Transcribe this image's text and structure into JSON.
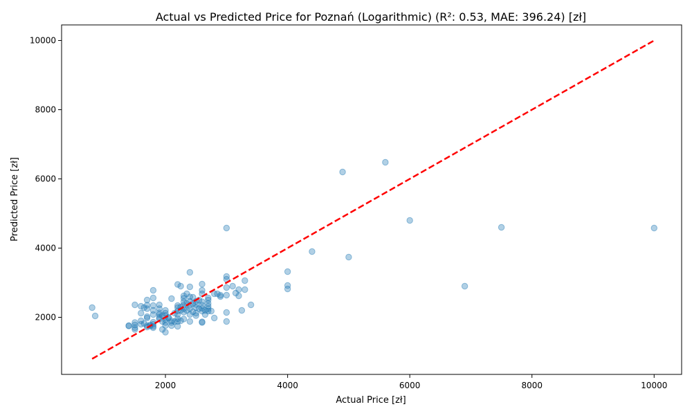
{
  "chart_data": {
    "type": "scatter",
    "title": "Actual vs Predicted Price for Poznań (Logarithmic) (R²: 0.53, MAE: 396.24) [zł]",
    "xlabel": "Actual Price [zł]",
    "ylabel": "Predicted Price [zł]",
    "xlim": [
      300,
      10450
    ],
    "ylim": [
      350,
      10450
    ],
    "xticks": [
      2000,
      4000,
      6000,
      8000,
      10000
    ],
    "yticks": [
      2000,
      4000,
      6000,
      8000,
      10000
    ],
    "xtick_labels": [
      "2000",
      "4000",
      "6000",
      "8000",
      "10000"
    ],
    "ytick_labels": [
      "2000",
      "4000",
      "6000",
      "8000",
      "10000"
    ],
    "grid": false,
    "colors": {
      "points": "#1f77b4",
      "reference_line": "#ff0000"
    },
    "reference_line": {
      "style": "dashed",
      "x": [
        800,
        10000
      ],
      "y": [
        800,
        10000
      ]
    },
    "points": [
      {
        "x": 800,
        "y": 2280
      },
      {
        "x": 850,
        "y": 2040
      },
      {
        "x": 1400,
        "y": 1750
      },
      {
        "x": 1400,
        "y": 1760
      },
      {
        "x": 1500,
        "y": 1650
      },
      {
        "x": 1500,
        "y": 1700
      },
      {
        "x": 1500,
        "y": 1780
      },
      {
        "x": 1500,
        "y": 1850
      },
      {
        "x": 1500,
        "y": 2360
      },
      {
        "x": 1600,
        "y": 1800
      },
      {
        "x": 1600,
        "y": 1900
      },
      {
        "x": 1600,
        "y": 2120
      },
      {
        "x": 1600,
        "y": 2320
      },
      {
        "x": 1650,
        "y": 1820
      },
      {
        "x": 1650,
        "y": 2280
      },
      {
        "x": 1700,
        "y": 1720
      },
      {
        "x": 1700,
        "y": 1760
      },
      {
        "x": 1700,
        "y": 1980
      },
      {
        "x": 1700,
        "y": 2020
      },
      {
        "x": 1700,
        "y": 2250
      },
      {
        "x": 1700,
        "y": 2350
      },
      {
        "x": 1700,
        "y": 2500
      },
      {
        "x": 1750,
        "y": 1780
      },
      {
        "x": 1750,
        "y": 1750
      },
      {
        "x": 1800,
        "y": 1700
      },
      {
        "x": 1800,
        "y": 1740
      },
      {
        "x": 1800,
        "y": 1800
      },
      {
        "x": 1800,
        "y": 1860
      },
      {
        "x": 1800,
        "y": 2080
      },
      {
        "x": 1800,
        "y": 2200
      },
      {
        "x": 1800,
        "y": 2340
      },
      {
        "x": 1800,
        "y": 2560
      },
      {
        "x": 1800,
        "y": 2780
      },
      {
        "x": 1900,
        "y": 1950
      },
      {
        "x": 1900,
        "y": 2000
      },
      {
        "x": 1900,
        "y": 2080
      },
      {
        "x": 1900,
        "y": 2130
      },
      {
        "x": 1900,
        "y": 2250
      },
      {
        "x": 1900,
        "y": 2360
      },
      {
        "x": 1950,
        "y": 1650
      },
      {
        "x": 1950,
        "y": 1880
      },
      {
        "x": 1950,
        "y": 2050
      },
      {
        "x": 2000,
        "y": 1570
      },
      {
        "x": 2000,
        "y": 1760
      },
      {
        "x": 2000,
        "y": 1850
      },
      {
        "x": 2000,
        "y": 1930
      },
      {
        "x": 2000,
        "y": 2050
      },
      {
        "x": 2000,
        "y": 2120
      },
      {
        "x": 2000,
        "y": 2200
      },
      {
        "x": 2050,
        "y": 1980
      },
      {
        "x": 2050,
        "y": 2000
      },
      {
        "x": 2100,
        "y": 1760
      },
      {
        "x": 2100,
        "y": 1850
      },
      {
        "x": 2100,
        "y": 1900
      },
      {
        "x": 2100,
        "y": 2540
      },
      {
        "x": 2150,
        "y": 1880
      },
      {
        "x": 2150,
        "y": 2120
      },
      {
        "x": 2200,
        "y": 1740
      },
      {
        "x": 2200,
        "y": 1880
      },
      {
        "x": 2200,
        "y": 1960
      },
      {
        "x": 2200,
        "y": 2080
      },
      {
        "x": 2200,
        "y": 2180
      },
      {
        "x": 2200,
        "y": 2280
      },
      {
        "x": 2200,
        "y": 2340
      },
      {
        "x": 2200,
        "y": 2950
      },
      {
        "x": 2250,
        "y": 1900
      },
      {
        "x": 2250,
        "y": 2200
      },
      {
        "x": 2250,
        "y": 2300
      },
      {
        "x": 2250,
        "y": 2900
      },
      {
        "x": 2300,
        "y": 1950
      },
      {
        "x": 2300,
        "y": 2150
      },
      {
        "x": 2300,
        "y": 2250
      },
      {
        "x": 2300,
        "y": 2350
      },
      {
        "x": 2300,
        "y": 2450
      },
      {
        "x": 2300,
        "y": 2550
      },
      {
        "x": 2300,
        "y": 2620
      },
      {
        "x": 2350,
        "y": 2200
      },
      {
        "x": 2350,
        "y": 2400
      },
      {
        "x": 2350,
        "y": 2680
      },
      {
        "x": 2400,
        "y": 1880
      },
      {
        "x": 2400,
        "y": 2080
      },
      {
        "x": 2400,
        "y": 2250
      },
      {
        "x": 2400,
        "y": 2350
      },
      {
        "x": 2400,
        "y": 2460
      },
      {
        "x": 2400,
        "y": 2590
      },
      {
        "x": 2400,
        "y": 2880
      },
      {
        "x": 2400,
        "y": 3300
      },
      {
        "x": 2450,
        "y": 2160
      },
      {
        "x": 2450,
        "y": 2400
      },
      {
        "x": 2450,
        "y": 2580
      },
      {
        "x": 2500,
        "y": 2050
      },
      {
        "x": 2500,
        "y": 2120
      },
      {
        "x": 2500,
        "y": 2280
      },
      {
        "x": 2500,
        "y": 2370
      },
      {
        "x": 2500,
        "y": 2460
      },
      {
        "x": 2550,
        "y": 2250
      },
      {
        "x": 2550,
        "y": 2500
      },
      {
        "x": 2600,
        "y": 1850
      },
      {
        "x": 2600,
        "y": 1870
      },
      {
        "x": 2600,
        "y": 2180
      },
      {
        "x": 2600,
        "y": 2260
      },
      {
        "x": 2600,
        "y": 2350
      },
      {
        "x": 2600,
        "y": 2450
      },
      {
        "x": 2600,
        "y": 2680
      },
      {
        "x": 2600,
        "y": 2780
      },
      {
        "x": 2600,
        "y": 2960
      },
      {
        "x": 2650,
        "y": 2080
      },
      {
        "x": 2650,
        "y": 2200
      },
      {
        "x": 2700,
        "y": 2180
      },
      {
        "x": 2700,
        "y": 2250
      },
      {
        "x": 2700,
        "y": 2320
      },
      {
        "x": 2700,
        "y": 2400
      },
      {
        "x": 2700,
        "y": 2500
      },
      {
        "x": 2700,
        "y": 2560
      },
      {
        "x": 2750,
        "y": 2180
      },
      {
        "x": 2800,
        "y": 1980
      },
      {
        "x": 2800,
        "y": 2680
      },
      {
        "x": 2850,
        "y": 2680
      },
      {
        "x": 2900,
        "y": 2600
      },
      {
        "x": 2900,
        "y": 2640
      },
      {
        "x": 3000,
        "y": 1880
      },
      {
        "x": 3000,
        "y": 2140
      },
      {
        "x": 3000,
        "y": 2640
      },
      {
        "x": 3000,
        "y": 2860
      },
      {
        "x": 3000,
        "y": 3100
      },
      {
        "x": 3000,
        "y": 3180
      },
      {
        "x": 3000,
        "y": 4580
      },
      {
        "x": 3100,
        "y": 2900
      },
      {
        "x": 3150,
        "y": 2700
      },
      {
        "x": 3200,
        "y": 2620
      },
      {
        "x": 3200,
        "y": 2800
      },
      {
        "x": 3250,
        "y": 2200
      },
      {
        "x": 3300,
        "y": 2800
      },
      {
        "x": 3300,
        "y": 3060
      },
      {
        "x": 3400,
        "y": 2360
      },
      {
        "x": 4000,
        "y": 2820
      },
      {
        "x": 4000,
        "y": 2920
      },
      {
        "x": 4000,
        "y": 3320
      },
      {
        "x": 4400,
        "y": 3900
      },
      {
        "x": 4900,
        "y": 6200
      },
      {
        "x": 5000,
        "y": 3740
      },
      {
        "x": 5600,
        "y": 6480
      },
      {
        "x": 6000,
        "y": 4800
      },
      {
        "x": 6900,
        "y": 2900
      },
      {
        "x": 7500,
        "y": 4600
      },
      {
        "x": 10000,
        "y": 4580
      }
    ]
  }
}
